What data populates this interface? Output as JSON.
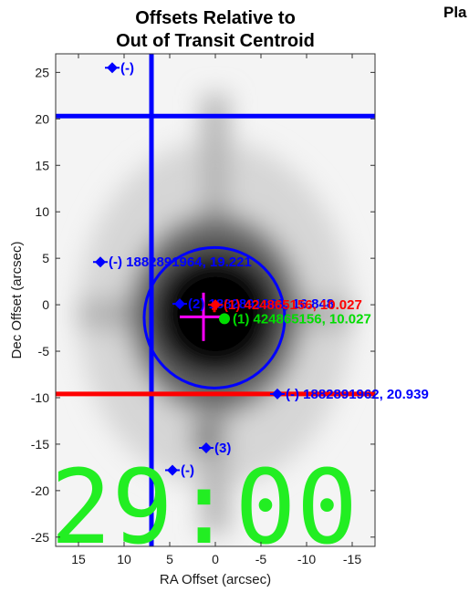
{
  "chart_data": {
    "type": "scatter",
    "title": [
      "Offsets Relative to",
      "Out of Transit Centroid"
    ],
    "clipped_title": "Pla",
    "xlabel": "RA Offset (arcsec)",
    "ylabel": "Dec Offset (arcsec)",
    "xlim": [
      17.5,
      -17.5
    ],
    "ylim": [
      -26,
      27
    ],
    "x_reversed": true,
    "xticks": [
      15,
      10,
      5,
      0,
      -5,
      -10,
      -15
    ],
    "yticks": [
      25,
      20,
      15,
      10,
      5,
      0,
      -5,
      -10,
      -15,
      -20,
      -25
    ],
    "grid": false,
    "background": "grayscale pixel image (target star), dark core at origin",
    "lines": [
      {
        "orientation": "vertical",
        "x": 7.0,
        "color": "#0000ff"
      },
      {
        "orientation": "horizontal",
        "y": 20.3,
        "color": "#0000ff"
      },
      {
        "orientation": "horizontal",
        "y": -9.6,
        "color": "#ff0000"
      }
    ],
    "circle": {
      "center": [
        0.1,
        -1.4
      ],
      "radius": 7.7,
      "color": "#0000ff"
    },
    "crosshairs": [
      {
        "x": 1.3,
        "y": -1.3,
        "dx": 2.6,
        "dy": 2.6,
        "color": "#ff00ff"
      },
      {
        "x": 0.1,
        "y": -0.4,
        "dx": 0.3,
        "dy": 0.4,
        "color": "#ff0000"
      }
    ],
    "points": [
      {
        "x": 11.3,
        "y": 25.5,
        "label": "(-)",
        "color": "#0000ff"
      },
      {
        "x": 12.6,
        "y": 4.6,
        "label": "(-) 1882891964, 19.221",
        "color": "#0000ff"
      },
      {
        "x": 3.9,
        "y": 0.1,
        "label": "(2) 1882891963, 16.848",
        "color": "#0000ff"
      },
      {
        "x": 0.0,
        "y": 0.0,
        "label": "(1) 424865156, 10.027",
        "color": "#ff0000"
      },
      {
        "x": -1.0,
        "y": -1.5,
        "label": "(1) 424865156, 10.027",
        "color": "#00dd00"
      },
      {
        "x": -6.8,
        "y": -9.6,
        "label": "(-) 1882891962, 20.939",
        "color": "#0000ff"
      },
      {
        "x": 1.0,
        "y": -15.4,
        "label": "(3)",
        "color": "#0000ff"
      },
      {
        "x": 4.7,
        "y": -17.8,
        "label": "(-)",
        "color": "#0000ff"
      }
    ],
    "overlay_text": {
      "text": "29:00 (",
      "color": "#22ee22"
    }
  }
}
